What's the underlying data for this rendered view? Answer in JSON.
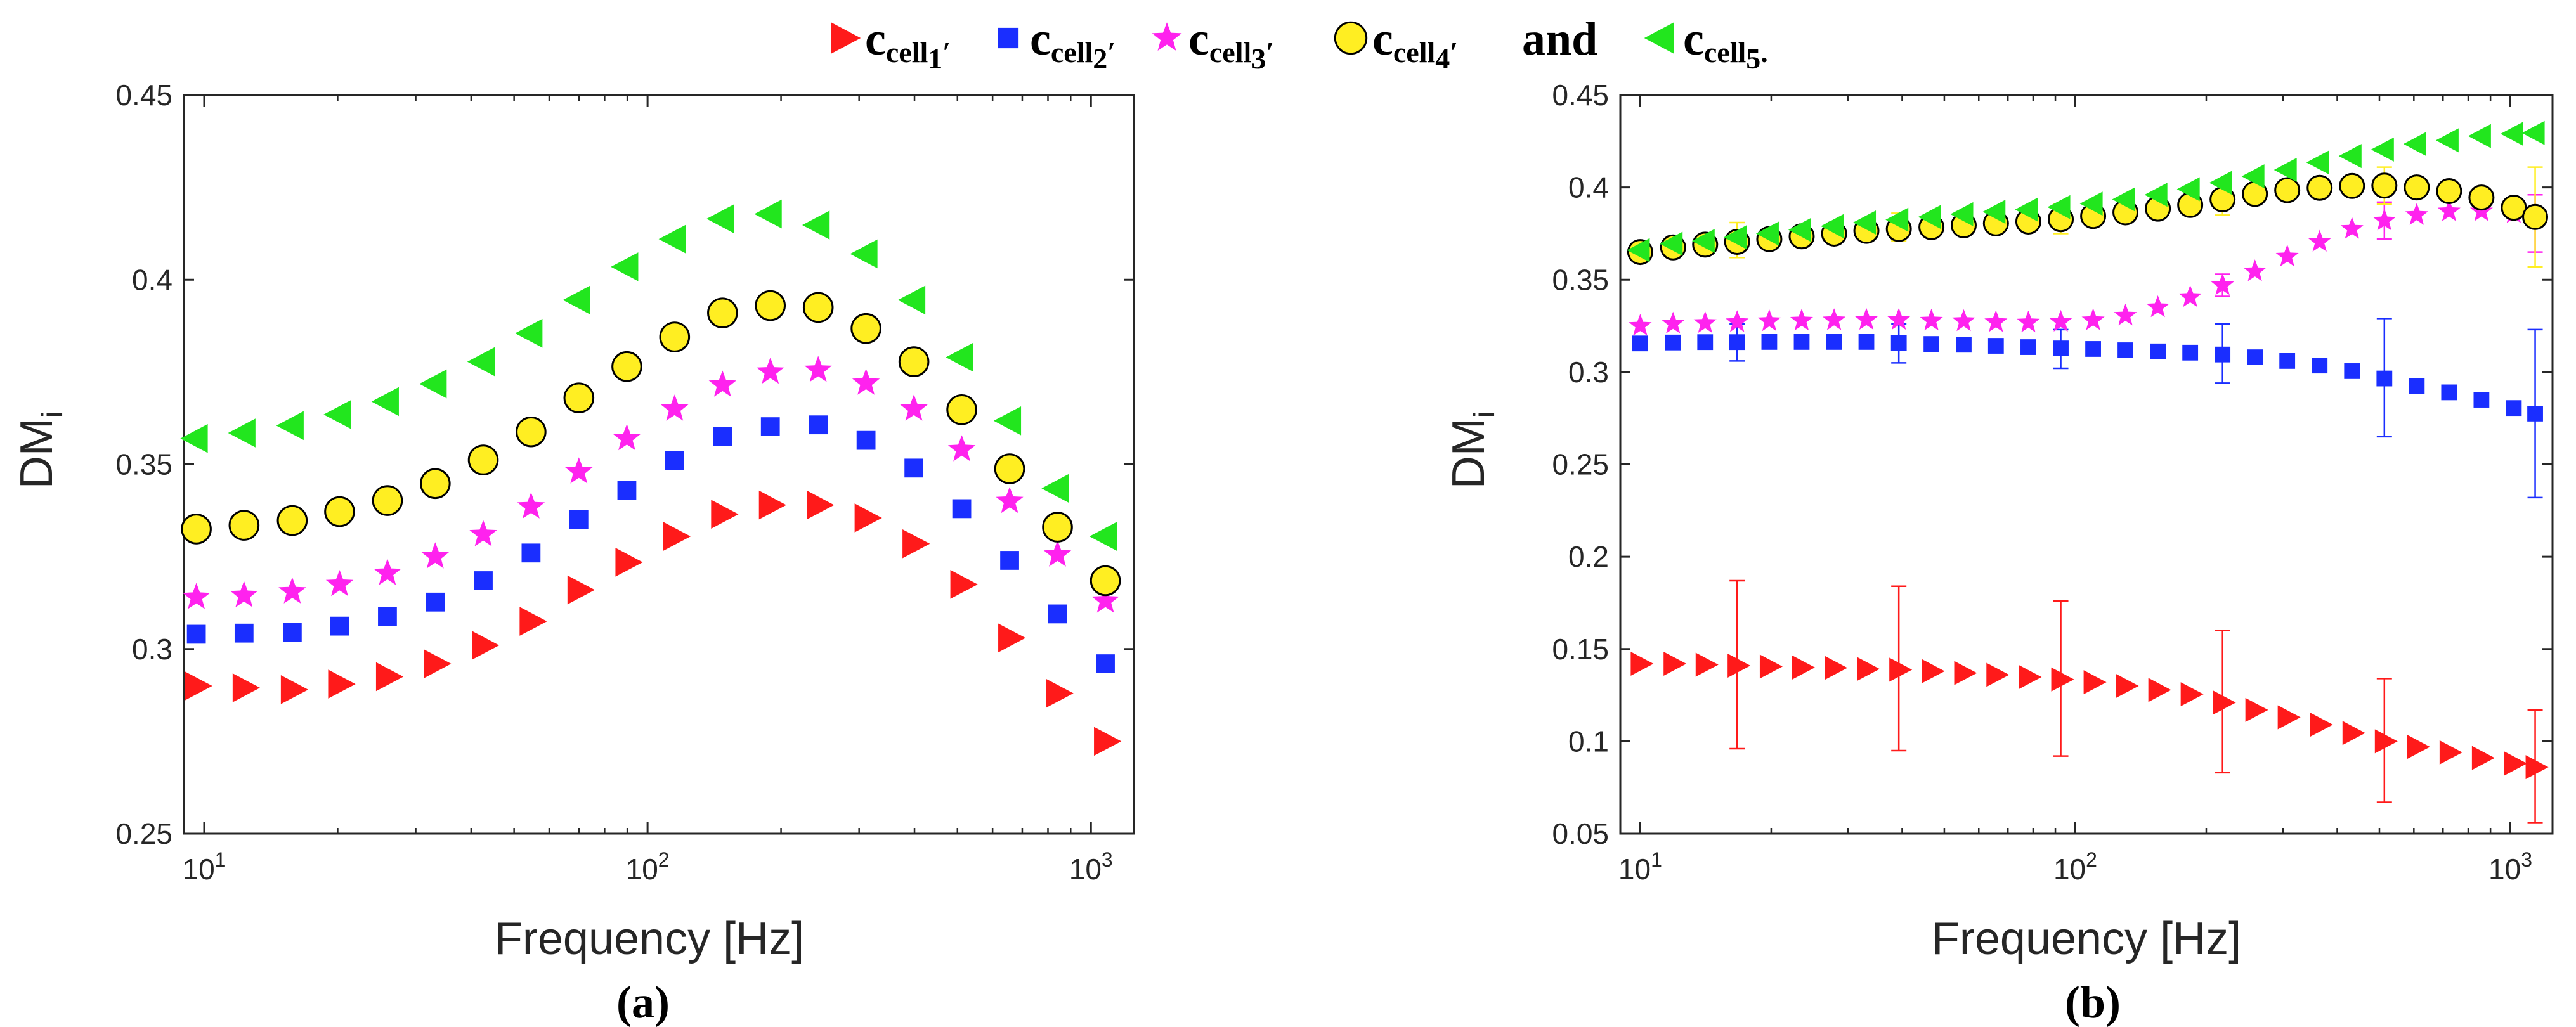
{
  "legend": {
    "entries": [
      {
        "symbol": "triangle-right",
        "color": "#ff1a1a",
        "base": "c",
        "sub": "cell",
        "subsub": "1",
        "suffix": "′"
      },
      {
        "symbol": "square",
        "color": "#1a2eff",
        "base": "c",
        "sub": "cell",
        "subsub": "2",
        "suffix": "′"
      },
      {
        "symbol": "star",
        "color": "#ff22ee",
        "base": "c",
        "sub": "cell",
        "subsub": "3",
        "suffix": "′"
      },
      {
        "symbol": "circle",
        "color": "#ffee22",
        "base": "c",
        "sub": "cell",
        "subsub": "4",
        "suffix": "′"
      },
      {
        "symbol": "triangle-left",
        "color": "#22e61e",
        "base": "c",
        "sub": "cell",
        "subsub": "5",
        "suffix": "."
      }
    ],
    "and_text": "and"
  },
  "chart_data": [
    {
      "type": "scatter",
      "panel_label": "(a)",
      "xlabel": "Frequency [Hz]",
      "ylabel_main": "DM",
      "ylabel_sub": "i",
      "xscale": "log",
      "xlim": [
        9,
        1250
      ],
      "ylim": [
        0.25,
        0.45
      ],
      "yticks": [
        "0.25",
        "0.3",
        "0.35",
        "0.4",
        "0.45"
      ],
      "xticks": [
        {
          "base": "10",
          "exp": "1",
          "value": 10
        },
        {
          "base": "10",
          "exp": "2",
          "value": 100
        },
        {
          "base": "10",
          "exp": "3",
          "value": 1000
        }
      ],
      "x": [
        9.6,
        12.3,
        15.8,
        20.2,
        25.9,
        33.2,
        42.6,
        54.6,
        70,
        89.8,
        115.1,
        147.6,
        189.2,
        242.6,
        311,
        398.8,
        511.3,
        655.6,
        840.6,
        1078
      ],
      "series": [
        {
          "name": "c_cell1'",
          "symbol": "triangle-right",
          "color": "#ff1a1a",
          "values": [
            0.29,
            0.2895,
            0.289,
            0.2905,
            0.2925,
            0.296,
            0.301,
            0.3075,
            0.316,
            0.3235,
            0.3305,
            0.3365,
            0.339,
            0.339,
            0.3355,
            0.3285,
            0.3175,
            0.303,
            0.288,
            0.275
          ]
        },
        {
          "name": "c_cell2'",
          "symbol": "square",
          "color": "#1a2eff",
          "values": [
            0.304,
            0.3043,
            0.3045,
            0.3062,
            0.3088,
            0.3127,
            0.3185,
            0.326,
            0.335,
            0.343,
            0.351,
            0.3575,
            0.3602,
            0.3607,
            0.3565,
            0.349,
            0.338,
            0.324,
            0.3095,
            0.296
          ]
        },
        {
          "name": "c_cell3'",
          "symbol": "star",
          "color": "#ff22ee",
          "values": [
            0.314,
            0.3145,
            0.3155,
            0.3175,
            0.3205,
            0.325,
            0.331,
            0.3385,
            0.348,
            0.357,
            0.365,
            0.3715,
            0.375,
            0.3755,
            0.372,
            0.365,
            0.354,
            0.34,
            0.3255,
            0.313
          ]
        },
        {
          "name": "c_cell4'",
          "symbol": "circle",
          "color": "#ffee22",
          "values": [
            0.3325,
            0.3335,
            0.3348,
            0.3372,
            0.3402,
            0.3448,
            0.3512,
            0.3588,
            0.368,
            0.3765,
            0.3845,
            0.391,
            0.393,
            0.3925,
            0.3868,
            0.3778,
            0.3648,
            0.3488,
            0.333,
            0.3185
          ]
        },
        {
          "name": "c_cell5.",
          "symbol": "triangle-left",
          "color": "#22e61e",
          "values": [
            0.357,
            0.3585,
            0.3605,
            0.3635,
            0.367,
            0.3718,
            0.3778,
            0.3855,
            0.3945,
            0.4035,
            0.411,
            0.4165,
            0.4178,
            0.4148,
            0.407,
            0.3945,
            0.379,
            0.3618,
            0.3435,
            0.3305
          ]
        }
      ]
    },
    {
      "type": "scatter",
      "panel_label": "(b)",
      "xlabel": "Frequency [Hz]",
      "ylabel_main": "DM",
      "ylabel_sub": "i",
      "xscale": "log",
      "xlim": [
        9,
        1250
      ],
      "ylim": [
        0.05,
        0.45
      ],
      "yticks": [
        "0.05",
        "0.1",
        "0.15",
        "0.2",
        "0.25",
        "0.3",
        "0.35",
        "0.4",
        "0.45"
      ],
      "xticks": [
        {
          "base": "10",
          "exp": "1",
          "value": 10
        },
        {
          "base": "10",
          "exp": "2",
          "value": 100
        },
        {
          "base": "10",
          "exp": "3",
          "value": 1000
        }
      ],
      "x": [
        10,
        11.9,
        14.1,
        16.7,
        19.8,
        23.5,
        27.9,
        33.1,
        39.3,
        46.7,
        55.4,
        65.7,
        78,
        92.6,
        109.9,
        130.4,
        154.8,
        183.7,
        218,
        258.7,
        307,
        364.4,
        432.5,
        513.3,
        609.2,
        723,
        858,
        1018.3,
        1140
      ],
      "series": [
        {
          "name": "c_cell1'",
          "symbol": "triangle-right",
          "color": "#ff1a1a",
          "values": [
            0.142,
            0.142,
            0.1415,
            0.141,
            0.1405,
            0.14,
            0.1398,
            0.1392,
            0.1388,
            0.138,
            0.137,
            0.136,
            0.1348,
            0.1335,
            0.132,
            0.13,
            0.1278,
            0.1255,
            0.121,
            0.117,
            0.113,
            0.109,
            0.1045,
            0.1,
            0.097,
            0.094,
            0.091,
            0.088,
            0.086
          ]
        },
        {
          "name": "c_cell2'",
          "symbol": "square",
          "color": "#1a2eff",
          "values": [
            0.3155,
            0.316,
            0.3162,
            0.3162,
            0.3163,
            0.3163,
            0.3163,
            0.3163,
            0.3158,
            0.3152,
            0.3148,
            0.3142,
            0.3135,
            0.3128,
            0.3125,
            0.3118,
            0.3112,
            0.3105,
            0.3095,
            0.308,
            0.306,
            0.3035,
            0.3005,
            0.2965,
            0.2925,
            0.289,
            0.285,
            0.2805,
            0.2775
          ]
        },
        {
          "name": "c_cell3'",
          "symbol": "star",
          "color": "#ff22ee",
          "values": [
            0.325,
            0.3262,
            0.3265,
            0.327,
            0.3275,
            0.3278,
            0.328,
            0.3282,
            0.3282,
            0.3278,
            0.3275,
            0.327,
            0.3268,
            0.3272,
            0.328,
            0.3305,
            0.335,
            0.3405,
            0.347,
            0.3545,
            0.3625,
            0.3705,
            0.3775,
            0.382,
            0.385,
            0.387,
            0.387,
            0.386,
            0.385
          ]
        },
        {
          "name": "c_cell4'",
          "symbol": "circle",
          "color": "#ffee22",
          "values": [
            0.365,
            0.3675,
            0.369,
            0.3705,
            0.372,
            0.3735,
            0.375,
            0.3765,
            0.3775,
            0.3785,
            0.3795,
            0.3805,
            0.3815,
            0.3828,
            0.3845,
            0.3865,
            0.3885,
            0.3905,
            0.3935,
            0.3965,
            0.3985,
            0.3998,
            0.4008,
            0.401,
            0.4,
            0.398,
            0.3945,
            0.389,
            0.384
          ]
        },
        {
          "name": "c_cell5.",
          "symbol": "triangle-left",
          "color": "#22e61e",
          "values": [
            0.366,
            0.3695,
            0.371,
            0.373,
            0.375,
            0.377,
            0.379,
            0.381,
            0.3825,
            0.384,
            0.3855,
            0.3868,
            0.388,
            0.3893,
            0.3912,
            0.3935,
            0.396,
            0.399,
            0.4025,
            0.406,
            0.4095,
            0.4135,
            0.417,
            0.4205,
            0.4235,
            0.4255,
            0.4278,
            0.429,
            0.4295
          ]
        }
      ],
      "errorbars": [
        {
          "series": "c_cell1'",
          "x": [
            16.7,
            39.3,
            92.6,
            218,
            513.3,
            1140
          ],
          "low": [
            0.096,
            0.095,
            0.092,
            0.083,
            0.067,
            0.056
          ],
          "high": [
            0.187,
            0.184,
            0.176,
            0.16,
            0.134,
            0.117
          ]
        },
        {
          "series": "c_cell2'",
          "x": [
            16.7,
            39.3,
            92.6,
            218,
            513.3,
            1140
          ],
          "low": [
            0.306,
            0.305,
            0.302,
            0.294,
            0.265,
            0.232
          ],
          "high": [
            0.326,
            0.326,
            0.323,
            0.326,
            0.329,
            0.323
          ]
        },
        {
          "series": "c_cell3'",
          "x": [
            218,
            513.3,
            1140
          ],
          "low": [
            0.341,
            0.372,
            0.365
          ],
          "high": [
            0.353,
            0.392,
            0.396
          ]
        },
        {
          "series": "c_cell4'",
          "x": [
            16.7,
            39.3,
            92.6,
            218,
            513.3,
            1140
          ],
          "low": [
            0.362,
            0.371,
            0.375,
            0.385,
            0.391,
            0.357
          ],
          "high": [
            0.381,
            0.386,
            0.391,
            0.403,
            0.411,
            0.411
          ]
        }
      ]
    }
  ]
}
